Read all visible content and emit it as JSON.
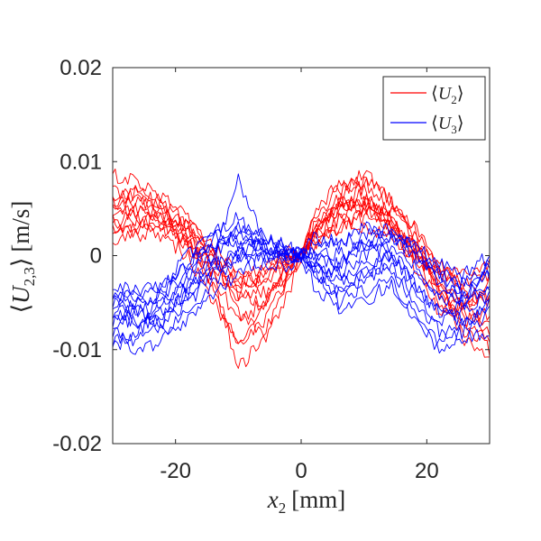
{
  "chart_data": {
    "type": "line",
    "title": "",
    "xlabel": "x2 [mm]",
    "xlabel_parts": {
      "var": "x",
      "sub": "2",
      "unit": "[mm]"
    },
    "ylabel": "⟨U2,3⟩ [m/s]",
    "ylabel_parts": {
      "open": "⟨",
      "var": "U",
      "sub": "2,3",
      "close": "⟩",
      "unit": "[m/s]"
    },
    "xlim": [
      -30,
      30
    ],
    "ylim": [
      -0.02,
      0.02
    ],
    "xticks": [
      -20,
      0,
      20
    ],
    "xtick_labels": [
      "-20",
      "0",
      "20"
    ],
    "yticks": [
      -0.02,
      -0.01,
      0,
      0.01,
      0.02
    ],
    "ytick_labels": [
      "-0.02",
      "-0.01",
      "0",
      "0.01",
      "0.02"
    ],
    "grid": false,
    "legend_position": "top-right",
    "series": [
      {
        "name": "⟨U2⟩",
        "legend_var": "U",
        "legend_sub": "2",
        "color": "#ff0000",
        "x": [
          -30,
          -26,
          -22,
          -18,
          -14,
          -10,
          -6,
          -2,
          0,
          2,
          6,
          10,
          14,
          18,
          22,
          26,
          30
        ],
        "curves": [
          [
            0.0085,
            0.008,
            0.006,
            0.003,
            -0.0005,
            -0.004,
            -0.002,
            -0.0005,
            0.0,
            0.003,
            0.006,
            0.009,
            0.006,
            0.003,
            -0.002,
            -0.006,
            -0.007
          ],
          [
            0.006,
            0.007,
            0.005,
            0.002,
            -0.002,
            -0.003,
            -0.001,
            0.0005,
            0.0,
            0.004,
            0.007,
            0.008,
            0.005,
            0.002,
            -0.003,
            -0.008,
            -0.01
          ],
          [
            0.004,
            0.005,
            0.004,
            0.003,
            0.0,
            -0.006,
            -0.008,
            -0.003,
            0.0,
            0.002,
            0.005,
            0.006,
            0.004,
            0.001,
            -0.004,
            -0.009,
            -0.011
          ],
          [
            0.003,
            0.004,
            0.003,
            0.001,
            -0.003,
            -0.01,
            -0.007,
            -0.002,
            0.0,
            0.001,
            0.004,
            0.007,
            0.003,
            0.0,
            -0.005,
            -0.007,
            -0.006
          ],
          [
            0.005,
            0.006,
            0.005,
            0.002,
            -0.001,
            -0.004,
            -0.005,
            -0.001,
            0.0,
            0.003,
            0.006,
            0.005,
            0.005,
            0.003,
            -0.001,
            -0.004,
            -0.005
          ],
          [
            0.002,
            0.003,
            0.004,
            0.004,
            0.001,
            -0.002,
            -0.004,
            -0.002,
            0.0,
            0.002,
            0.003,
            0.005,
            0.004,
            0.0,
            -0.003,
            -0.005,
            -0.004
          ],
          [
            0.006,
            0.004,
            0.002,
            0.0,
            -0.005,
            -0.009,
            -0.006,
            -0.001,
            0.0,
            0.004,
            0.008,
            0.007,
            0.003,
            -0.001,
            -0.006,
            -0.005,
            -0.003
          ],
          [
            0.001,
            0.003,
            0.005,
            0.003,
            0.0,
            -0.003,
            -0.002,
            0.0,
            0.0,
            0.002,
            0.004,
            0.003,
            0.002,
            0.0,
            -0.002,
            -0.003,
            -0.002
          ],
          [
            0.007,
            0.006,
            0.004,
            0.001,
            -0.003,
            -0.012,
            -0.009,
            -0.004,
            0.0,
            0.003,
            0.005,
            0.008,
            0.006,
            0.002,
            -0.004,
            -0.006,
            -0.008
          ],
          [
            0.004,
            0.002,
            0.003,
            0.002,
            -0.001,
            -0.005,
            -0.003,
            -0.001,
            0.0,
            0.001,
            0.003,
            0.004,
            0.003,
            0.001,
            -0.001,
            -0.004,
            -0.005
          ],
          [
            0.005,
            0.007,
            0.006,
            0.004,
            0.0,
            -0.002,
            -0.003,
            0.0,
            0.0,
            0.003,
            0.005,
            0.006,
            0.004,
            0.001,
            -0.003,
            -0.007,
            -0.009
          ],
          [
            0.003,
            0.005,
            0.003,
            0.001,
            -0.002,
            -0.007,
            -0.005,
            -0.002,
            0.0,
            0.002,
            0.006,
            0.005,
            0.003,
            0.0,
            -0.002,
            -0.002,
            -0.001
          ]
        ]
      },
      {
        "name": "⟨U3⟩",
        "legend_var": "U",
        "legend_sub": "3",
        "color": "#0000ff",
        "x": [
          -30,
          -26,
          -22,
          -18,
          -14,
          -10,
          -6,
          -2,
          0,
          2,
          6,
          10,
          14,
          18,
          22,
          26,
          30
        ],
        "curves": [
          [
            -0.009,
            -0.008,
            -0.006,
            -0.004,
            0.0,
            0.003,
            0.002,
            0.0005,
            0.0,
            -0.002,
            -0.004,
            -0.002,
            -0.001,
            -0.005,
            -0.008,
            -0.009,
            -0.008
          ],
          [
            -0.007,
            -0.007,
            -0.005,
            -0.002,
            0.001,
            0.002,
            0.001,
            0.0,
            0.0,
            -0.001,
            -0.002,
            0.0,
            0.001,
            -0.003,
            -0.006,
            -0.007,
            -0.005
          ],
          [
            -0.006,
            -0.005,
            -0.004,
            -0.001,
            0.002,
            0.001,
            0.0,
            0.0,
            0.0,
            0.0,
            -0.001,
            0.002,
            0.003,
            0.0,
            -0.002,
            -0.004,
            -0.003
          ],
          [
            -0.008,
            -0.009,
            -0.007,
            -0.003,
            -0.001,
            0.0,
            0.001,
            0.0,
            0.0,
            -0.003,
            -0.006,
            -0.005,
            -0.003,
            -0.006,
            -0.01,
            -0.008,
            -0.006
          ],
          [
            -0.005,
            -0.004,
            -0.003,
            0.0,
            0.002,
            0.004,
            0.002,
            0.001,
            0.0,
            0.001,
            0.0,
            0.001,
            0.002,
            0.001,
            -0.001,
            -0.002,
            0.0
          ],
          [
            -0.004,
            -0.006,
            -0.007,
            -0.005,
            -0.002,
            0.001,
            0.001,
            0.0,
            0.0,
            -0.001,
            -0.003,
            -0.001,
            0.0,
            -0.002,
            -0.004,
            -0.003,
            -0.002
          ],
          [
            -0.007,
            -0.006,
            -0.008,
            -0.006,
            -0.003,
            0.0,
            -0.001,
            -0.001,
            0.0,
            -0.002,
            -0.005,
            -0.003,
            -0.001,
            -0.004,
            -0.007,
            -0.006,
            -0.004
          ],
          [
            -0.003,
            -0.004,
            -0.003,
            -0.001,
            0.003,
            0.002,
            0.001,
            0.0,
            0.0,
            0.002,
            0.001,
            0.003,
            0.002,
            0.0,
            -0.003,
            -0.005,
            -0.001
          ],
          [
            -0.009,
            -0.01,
            -0.009,
            -0.007,
            -0.004,
            -0.002,
            0.0,
            0.0,
            0.0,
            -0.001,
            -0.002,
            -0.004,
            -0.002,
            -0.007,
            -0.009,
            -0.007,
            -0.005
          ],
          [
            -0.005,
            -0.006,
            -0.005,
            -0.003,
            0.0,
            0.008,
            0.002,
            0.001,
            0.0,
            0.0,
            -0.001,
            0.001,
            0.001,
            -0.001,
            -0.005,
            -0.004,
            -0.002
          ],
          [
            -0.006,
            -0.007,
            -0.006,
            -0.004,
            -0.001,
            0.0,
            0.0,
            -0.0005,
            0.0,
            -0.001,
            -0.004,
            -0.002,
            0.0,
            -0.003,
            -0.006,
            -0.005,
            -0.003
          ],
          [
            -0.004,
            -0.005,
            -0.004,
            -0.002,
            0.001,
            0.003,
            0.001,
            0.0,
            0.0,
            0.001,
            0.002,
            0.001,
            0.003,
            0.001,
            -0.002,
            -0.003,
            -0.001
          ]
        ]
      }
    ]
  }
}
